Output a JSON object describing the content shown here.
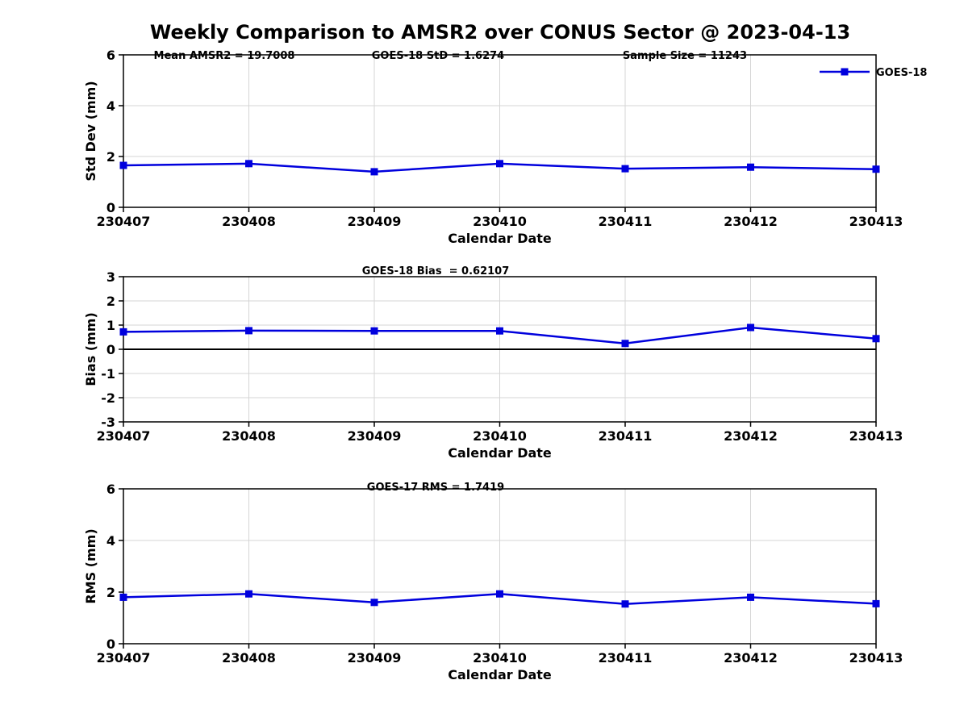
{
  "title": "Weekly Comparison to AMSR2 over CONUS Sector @ 2023-04-13",
  "colors": {
    "line": "#0000dd",
    "grid": "#d5d5d5",
    "axis": "#000000",
    "zero_line": "#000000",
    "background": "#ffffff",
    "text": "#000000"
  },
  "legend": {
    "label": "GOES-18",
    "position": "top-right-outside"
  },
  "x_axis": {
    "label": "Calendar Date",
    "categories": [
      "230407",
      "230408",
      "230409",
      "230410",
      "230411",
      "230412",
      "230413"
    ]
  },
  "chart_data": [
    {
      "id": "std-dev",
      "type": "line",
      "categories": [
        "230407",
        "230408",
        "230409",
        "230410",
        "230411",
        "230412",
        "230413"
      ],
      "series": [
        {
          "name": "GOES-18",
          "values": [
            1.65,
            1.72,
            1.4,
            1.72,
            1.52,
            1.58,
            1.5
          ]
        }
      ],
      "xlabel": "Calendar Date",
      "ylabel": "Std Dev (mm)",
      "ylim": [
        0,
        6
      ],
      "yticks": [
        0,
        2,
        4,
        6
      ],
      "grid": true,
      "zero_line": false,
      "annotations": [
        "Mean AMSR2 = 19.7008",
        "GOES-18 StD = 1.6274",
        "Sample Size = 11243"
      ],
      "legend_entries": [
        "GOES-18"
      ]
    },
    {
      "id": "bias",
      "type": "line",
      "categories": [
        "230407",
        "230408",
        "230409",
        "230410",
        "230411",
        "230412",
        "230413"
      ],
      "series": [
        {
          "name": "GOES-18",
          "values": [
            0.72,
            0.77,
            0.76,
            0.76,
            0.24,
            0.9,
            0.44
          ]
        }
      ],
      "xlabel": "Calendar Date",
      "ylabel": "Bias (mm)",
      "ylim": [
        -3,
        3
      ],
      "yticks": [
        3,
        2,
        1,
        0,
        -1,
        -2,
        -3
      ],
      "grid": true,
      "zero_line": true,
      "annotations": [
        "GOES-18 Bias  = 0.62107"
      ],
      "legend_entries": []
    },
    {
      "id": "rms",
      "type": "line",
      "categories": [
        "230407",
        "230408",
        "230409",
        "230410",
        "230411",
        "230412",
        "230413"
      ],
      "series": [
        {
          "name": "GOES-18",
          "values": [
            1.8,
            1.93,
            1.6,
            1.93,
            1.54,
            1.8,
            1.55
          ]
        }
      ],
      "xlabel": "Calendar Date",
      "ylabel": "RMS (mm)",
      "ylim": [
        0,
        6
      ],
      "yticks": [
        0,
        2,
        4,
        6
      ],
      "grid": true,
      "zero_line": false,
      "annotations": [
        "GOES-17 RMS = 1.7419"
      ],
      "legend_entries": []
    }
  ]
}
